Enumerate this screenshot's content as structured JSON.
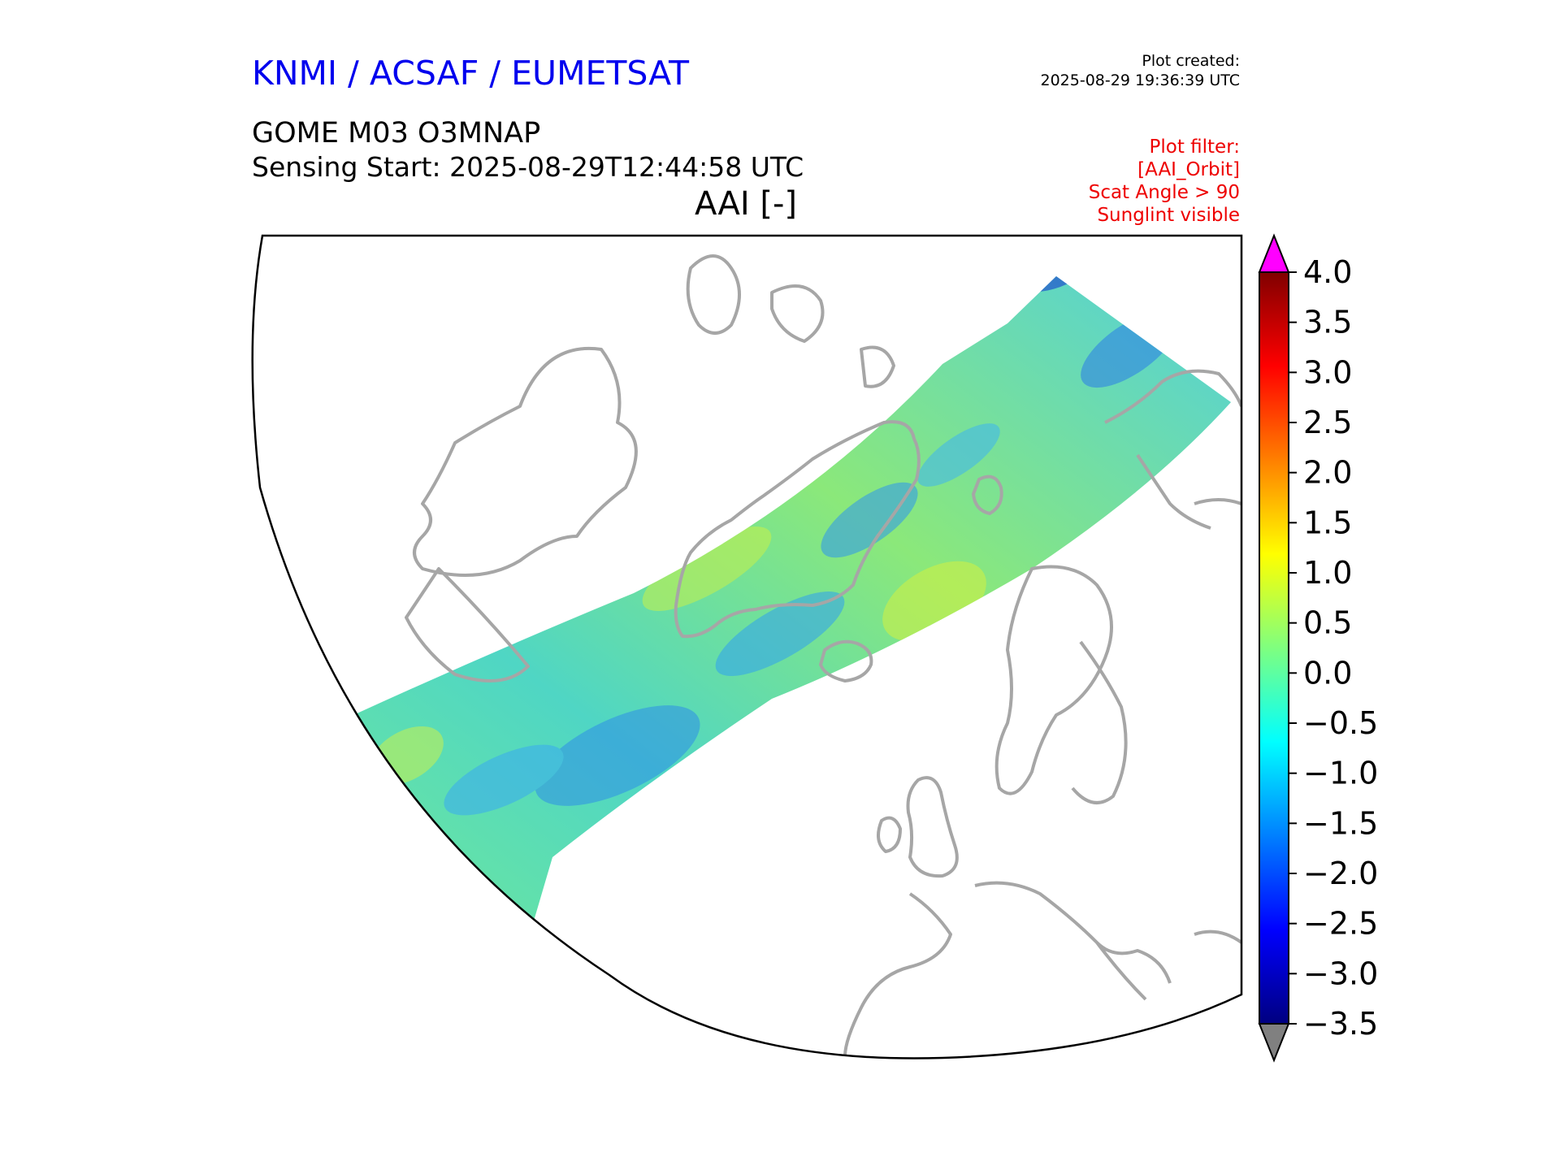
{
  "header": {
    "provider": "KNMI / ACSAF / EUMETSAT",
    "created_label": "Plot created:",
    "created_value": "2025-08-29 19:36:39 UTC",
    "product": "GOME M03 O3MNAP",
    "sensing_start": "Sensing Start: 2025-08-29T12:44:58 UTC",
    "variable": "AAI [-]"
  },
  "filters": [
    "Plot filter:",
    "[AAI_Orbit]",
    "Scat Angle > 90",
    "Sunglint visible"
  ],
  "colors": {
    "provider_text": "#0000ee",
    "filter_text": "#ee0000",
    "coastline": "#a6a6a6",
    "over_extend": "#ff00ff",
    "under_extend": "#808080"
  },
  "colorbar": {
    "min": -3.5,
    "max": 4.0,
    "ticks": [
      "4.0",
      "3.5",
      "3.0",
      "2.5",
      "2.0",
      "1.5",
      "1.0",
      "0.5",
      "0.0",
      "−0.5",
      "−1.0",
      "−1.5",
      "−2.0",
      "−2.5",
      "−3.0",
      "−3.5"
    ],
    "colormap": "jet",
    "extend": "both"
  },
  "map": {
    "projection": "polar sector",
    "region": "Arctic / North Atlantic / Europe",
    "swath_dominant_range": [
      -1.0,
      0.5
    ]
  }
}
